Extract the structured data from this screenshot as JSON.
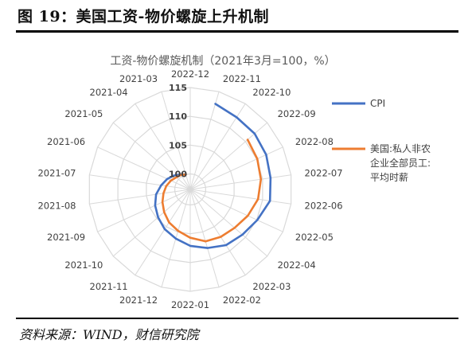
{
  "figure": {
    "title": "图 19：美国工资-物价螺旋上升机制",
    "source": "资料来源：WIND，财信研究院"
  },
  "chart_data": {
    "type": "radar",
    "title": "工资-物价螺旋机制（2021年3月=100，%）",
    "categories": [
      "2022-12",
      "2022-11",
      "2022-10",
      "2022-09",
      "2022-08",
      "2022-07",
      "2022-06",
      "2022-05",
      "2022-04",
      "2022-03",
      "2022-02",
      "2022-01",
      "2021-12",
      "2021-11",
      "2021-10",
      "2021-09",
      "2021-08",
      "2021-07",
      "2021-06",
      "2021-05",
      "2021-04",
      "2021-03"
    ],
    "radial_ticks": [
      100,
      105,
      110,
      115
    ],
    "rlim": [
      97.3,
      115
    ],
    "legend_position": "right",
    "series": [
      {
        "name": "CPI",
        "color": "#4472C4",
        "values": [
          null,
          112.8,
          112.2,
          112.1,
          111.8,
          111.4,
          111.3,
          110.1,
          109.3,
          108.8,
          107.9,
          107.1,
          106.2,
          105.5,
          104.7,
          104.0,
          103.3,
          102.4,
          101.7,
          101.0,
          100.4,
          100.0
        ]
      },
      {
        "name": "美国:私人非农企业全部员工:平均时薪",
        "legend_lines": [
          "美国:私人非农",
          "企业全部员工:",
          "平均时薪"
        ],
        "color": "#ED7D31",
        "values": [
          null,
          null,
          null,
          110.5,
          110.1,
          109.7,
          109.2,
          108.3,
          107.5,
          107.1,
          106.7,
          105.7,
          104.8,
          104.1,
          103.3,
          102.6,
          102.0,
          101.5,
          101.0,
          100.5,
          100.3,
          100.0
        ]
      }
    ]
  }
}
